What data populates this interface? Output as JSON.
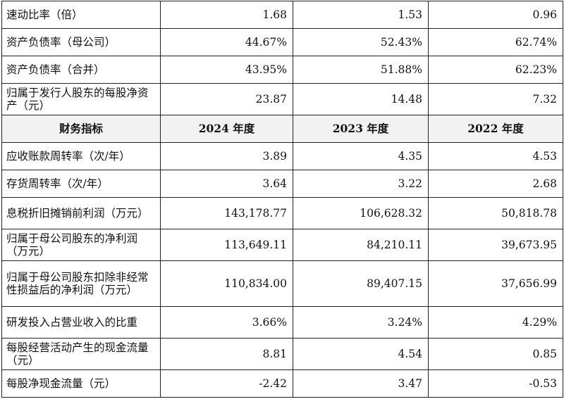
{
  "table": {
    "rows": [
      {
        "label": "速动比率（倍）",
        "values": [
          "1.68",
          "1.53",
          "0.96"
        ]
      },
      {
        "label": "资产负债率（母公司）",
        "values": [
          "44.67%",
          "52.43%",
          "62.74%"
        ]
      },
      {
        "label": "资产负债率（合并）",
        "values": [
          "43.95%",
          "51.88%",
          "62.23%"
        ]
      },
      {
        "label": "归属于发行人股东的每股净资产（元）",
        "values": [
          "23.87",
          "14.48",
          "7.32"
        ]
      }
    ],
    "header": [
      "财务指标",
      "2024 年度",
      "2023 年度",
      "2022 年度"
    ],
    "rows2": [
      {
        "label": "应收账款周转率（次/年）",
        "values": [
          "3.89",
          "4.35",
          "4.53"
        ]
      },
      {
        "label": "存货周转率（次/年）",
        "values": [
          "3.64",
          "3.22",
          "2.68"
        ]
      },
      {
        "label": "息税折旧摊销前利润（万元）",
        "values": [
          "143,178.77",
          "106,628.32",
          "50,818.78"
        ]
      },
      {
        "label": "归属于母公司股东的净利润（万元）",
        "values": [
          "113,649.11",
          "84,210.11",
          "39,673.95"
        ]
      },
      {
        "label": "归属于母公司股东扣除非经常性损益后的净利润（万元）",
        "values": [
          "110,834.00",
          "89,407.15",
          "37,656.99"
        ]
      },
      {
        "label": "研发投入占营业收入的比重",
        "values": [
          "3.66%",
          "3.24%",
          "4.29%"
        ]
      },
      {
        "label": "每股经营活动产生的现金流量（元）",
        "values": [
          "8.81",
          "4.54",
          "0.85"
        ]
      },
      {
        "label": "每股净现金流量（元）",
        "values": [
          "-2.42",
          "3.47",
          "-0.53"
        ]
      }
    ]
  }
}
